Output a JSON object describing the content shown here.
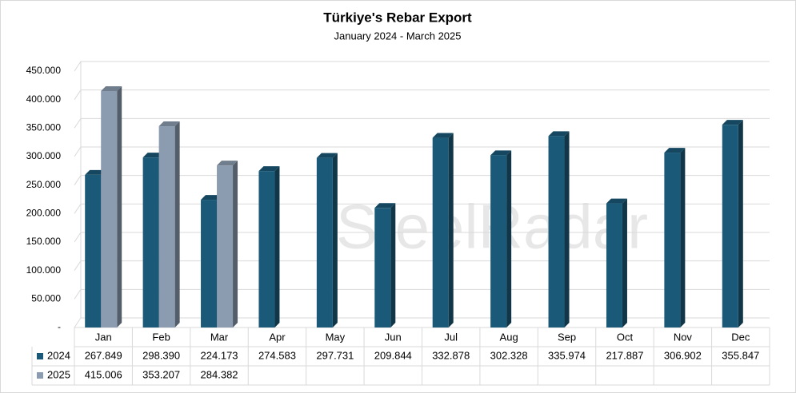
{
  "chart_data": {
    "type": "bar",
    "title": "Türkiye's Rebar Export",
    "subtitle": "January 2024 - March 2025",
    "watermark": "SteelRadar",
    "categories": [
      "Jan",
      "Feb",
      "Mar",
      "Apr",
      "May",
      "Jun",
      "Jul",
      "Aug",
      "Sep",
      "Oct",
      "Nov",
      "Dec"
    ],
    "series": [
      {
        "name": "2024",
        "color": "#1a5a78",
        "values": [
          267849,
          298390,
          224173,
          274583,
          297731,
          209844,
          332878,
          302328,
          335974,
          217887,
          306902,
          355847
        ],
        "value_labels": [
          "267.849",
          "298.390",
          "224.173",
          "274.583",
          "297.731",
          "209.844",
          "332.878",
          "302.328",
          "335.974",
          "217.887",
          "306.902",
          "355.847"
        ]
      },
      {
        "name": "2025",
        "color": "#8c9cb0",
        "values": [
          415006,
          353207,
          284382,
          null,
          null,
          null,
          null,
          null,
          null,
          null,
          null,
          null
        ],
        "value_labels": [
          "415.006",
          "353.207",
          "284.382",
          null,
          null,
          null,
          null,
          null,
          null,
          null,
          null,
          null
        ]
      }
    ],
    "ylim": [
      0,
      450000
    ],
    "yticks": [
      {
        "value": 0,
        "label": "-"
      },
      {
        "value": 50000,
        "label": "50.000"
      },
      {
        "value": 100000,
        "label": "100.000"
      },
      {
        "value": 150000,
        "label": "150.000"
      },
      {
        "value": 200000,
        "label": "200.000"
      },
      {
        "value": 250000,
        "label": "250.000"
      },
      {
        "value": 300000,
        "label": "300.000"
      },
      {
        "value": 350000,
        "label": "350.000"
      },
      {
        "value": 400000,
        "label": "400.000"
      },
      {
        "value": 450000,
        "label": "450.000"
      }
    ],
    "grid": true
  }
}
